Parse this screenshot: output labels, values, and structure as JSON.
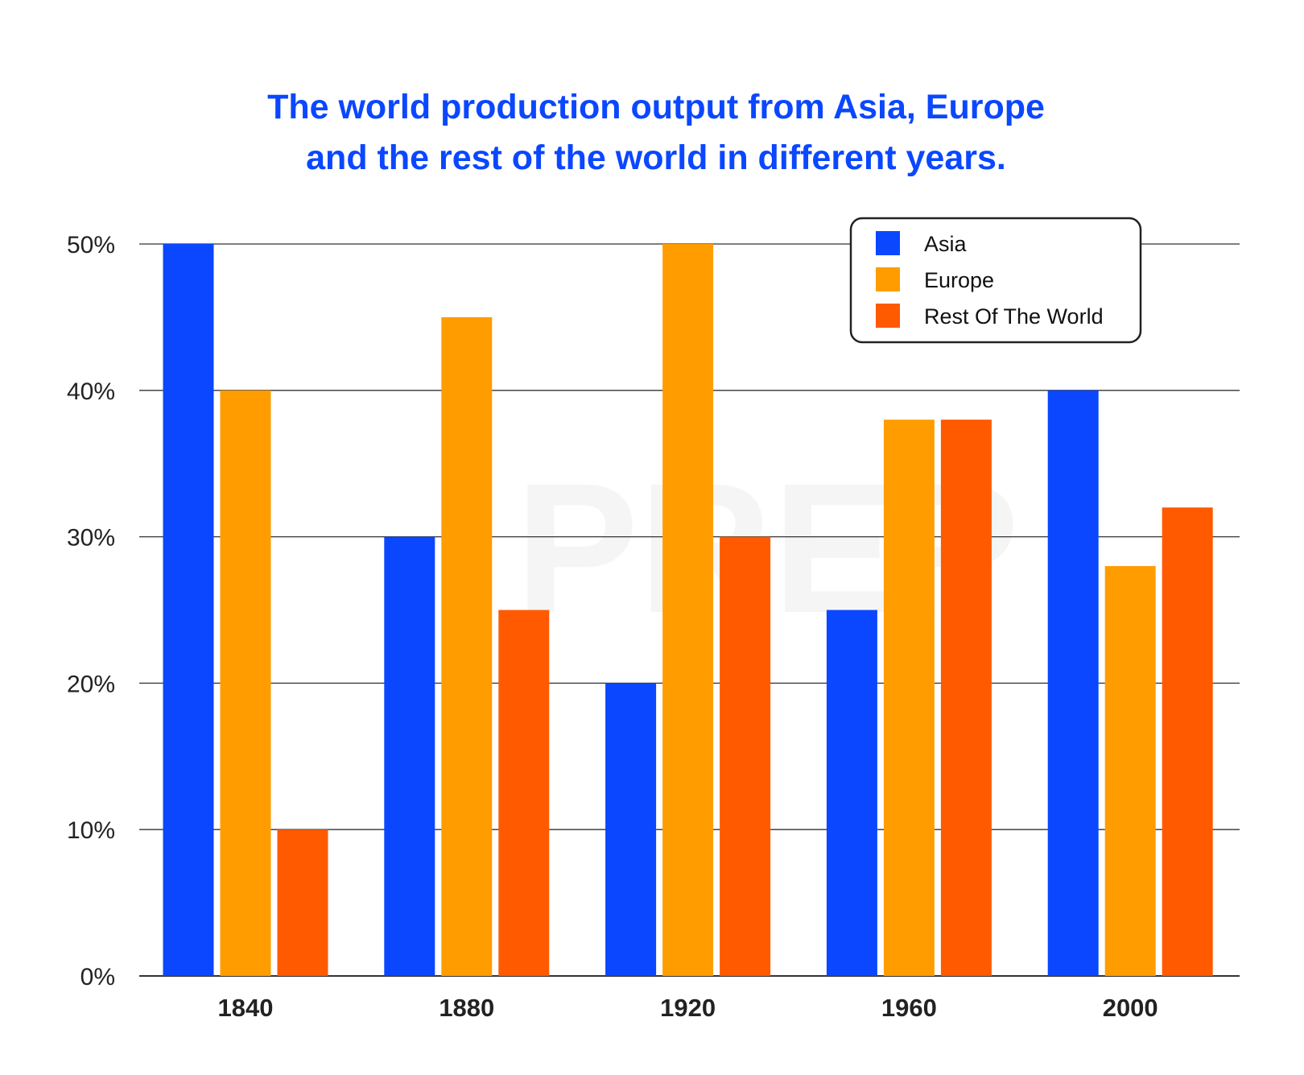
{
  "chart_data": {
    "type": "bar",
    "title_lines": [
      "The world production output from Asia, Europe",
      "and the rest of the world in different years."
    ],
    "categories": [
      "1840",
      "1880",
      "1920",
      "1960",
      "2000"
    ],
    "series": [
      {
        "name": "Asia",
        "color": "#0a47ff",
        "values": [
          50,
          30,
          20,
          25,
          40
        ]
      },
      {
        "name": "Europe",
        "color": "#ff9d00",
        "values": [
          40,
          45,
          50,
          38,
          28
        ]
      },
      {
        "name": "Rest Of The World",
        "color": "#ff5a00",
        "values": [
          10,
          25,
          30,
          38,
          32
        ]
      }
    ],
    "yticks": [
      "0%",
      "10%",
      "20%",
      "30%",
      "40%",
      "50%"
    ],
    "ylim": [
      0,
      50
    ],
    "grid": true,
    "legend_position": "top-right",
    "watermark": "PREP"
  }
}
